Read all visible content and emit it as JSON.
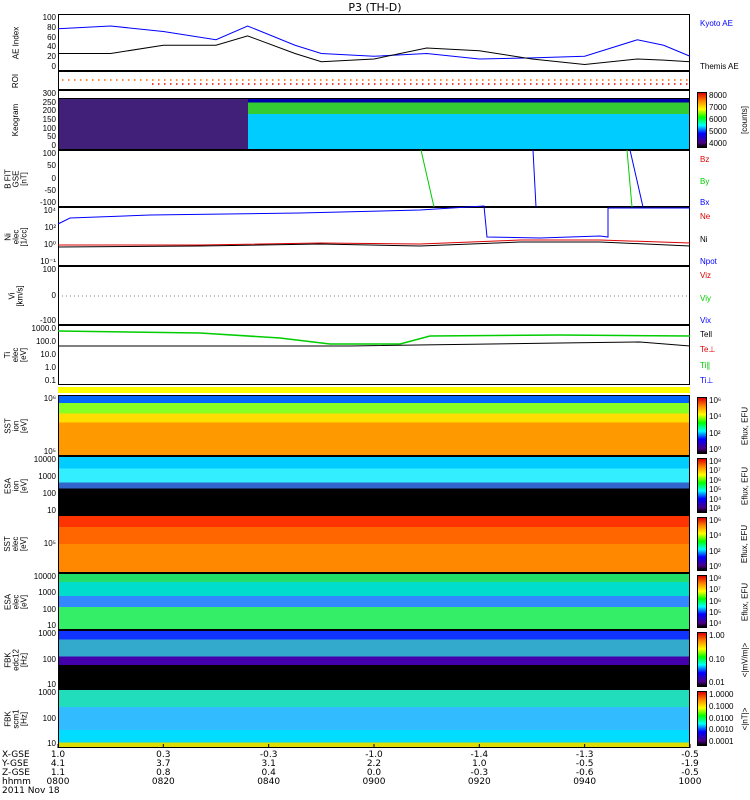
{
  "title": "P3 (TH-D)",
  "panels": {
    "ae": {
      "label": "AE Index",
      "ticks": [
        "100",
        "80",
        "60",
        "40",
        "20",
        "0"
      ],
      "legend": [
        "Kyoto AE",
        "Themis AE"
      ]
    },
    "roi": {
      "label": "ROI"
    },
    "keogram": {
      "label": "Keogram",
      "ticks": [
        "300",
        "250",
        "200",
        "150",
        "100",
        "50",
        "0"
      ],
      "cbar": [
        "8000",
        "7000",
        "6000",
        "5000",
        "4000"
      ],
      "cbar_title": "[counts]"
    },
    "bfit": {
      "label": "B FIT\nGSE\n[nT]",
      "ticks": [
        "100",
        "50",
        "0",
        "-50",
        "-100"
      ],
      "legend": [
        "Bz",
        "By",
        "Bx"
      ]
    },
    "ni": {
      "label": "Ni\nelec\n[1/cc]",
      "ticks": [
        "10⁴",
        "10²",
        "10⁰",
        "10⁻¹"
      ],
      "legend": [
        "Ne",
        "Ni",
        "Npot"
      ]
    },
    "vi": {
      "label": "Vi\n[km/s]",
      "ticks": [
        "100",
        "0",
        "-100"
      ],
      "legend": [
        "Viz",
        "Viy",
        "Vix"
      ]
    },
    "ti": {
      "label": "Ti\nelec\n[eV]",
      "ticks": [
        "1000.0",
        "100.0",
        "10.0",
        "1.0",
        "0.1"
      ],
      "legend": [
        "Tell",
        "Te⊥",
        "Ti∥",
        "Ti⊥"
      ]
    },
    "sst_i": {
      "label": "SST\nion\n[eV]",
      "ticks": [
        "10⁶",
        "10⁵"
      ],
      "cbar": [
        "10⁶",
        "10⁴",
        "10²",
        "10⁰"
      ],
      "cbar_title": "Eflux, EFU"
    },
    "esa_i": {
      "label": "ESA\nion\n[eV]",
      "ticks": [
        "10000",
        "1000",
        "100",
        "10"
      ],
      "cbar": [
        "10⁸",
        "10⁷",
        "10⁶",
        "10⁵",
        "10⁴",
        "10³"
      ],
      "cbar_title": "Eflux, EFU"
    },
    "sst_e": {
      "label": "SST\nelec\n[eV]",
      "ticks": [
        "10⁵"
      ],
      "cbar": [
        "10⁶",
        "10⁴",
        "10²",
        "10⁰"
      ],
      "cbar_title": "Eflux, EFU"
    },
    "esa_e": {
      "label": "ESA\nelec\n[eV]",
      "ticks": [
        "10000",
        "1000",
        "100",
        "10"
      ],
      "cbar": [
        "10⁸",
        "10⁷",
        "10⁶",
        "10⁵",
        "10⁴"
      ],
      "cbar_title": "Eflux, EFU"
    },
    "fbk1": {
      "label": "FBK\nedc12\n[Hz]",
      "ticks": [
        "1000",
        "100",
        "10"
      ],
      "cbar": [
        "1.00",
        "0.10",
        "0.01"
      ],
      "cbar_title": "<|mV/m|>"
    },
    "fbk2": {
      "label": "FBK\nscm1\n[Hz]",
      "ticks": [
        "1000",
        "100",
        "10"
      ],
      "cbar": [
        "1.0000",
        "0.1000",
        "0.0100",
        "0.0010",
        "0.0001"
      ],
      "cbar_title": "<|nT|>"
    }
  },
  "axis": {
    "row_labels": [
      "X-GSE",
      "Y-GSE",
      "Z-GSE",
      "hhmm"
    ],
    "date": "2011 Nov 18",
    "columns": [
      {
        "x": "1.0",
        "y": "4.1",
        "z": "1.1",
        "t": "0800"
      },
      {
        "x": "0.3",
        "y": "3.7",
        "z": "0.8",
        "t": "0820"
      },
      {
        "x": "-0.3",
        "y": "3.1",
        "z": "0.4",
        "t": "0840"
      },
      {
        "x": "-1.0",
        "y": "2.2",
        "z": "0.0",
        "t": "0900"
      },
      {
        "x": "-1.4",
        "y": "1.0",
        "z": "-0.3",
        "t": "0920"
      },
      {
        "x": "-1.3",
        "y": "-0.5",
        "z": "-0.6",
        "t": "0940"
      },
      {
        "x": "-0.5",
        "y": "-1.9",
        "z": "-0.5",
        "t": "1000"
      }
    ]
  },
  "chart_data": {
    "type": "line",
    "title": "AE Index",
    "x_minutes": [
      0,
      10,
      20,
      30,
      36,
      45,
      50,
      60,
      70,
      80,
      90,
      100,
      110,
      115,
      120
    ],
    "series": [
      {
        "name": "Kyoto AE",
        "color": "#0000ff",
        "values": [
          75,
          80,
          70,
          55,
          80,
          45,
          30,
          25,
          30,
          20,
          22,
          25,
          55,
          45,
          25
        ]
      },
      {
        "name": "Themis AE",
        "color": "#000000",
        "values": [
          30,
          30,
          45,
          45,
          62,
          30,
          15,
          20,
          40,
          35,
          20,
          10,
          20,
          18,
          15
        ]
      }
    ],
    "ylim": [
      0,
      100
    ],
    "xlabel": "hhmm"
  }
}
